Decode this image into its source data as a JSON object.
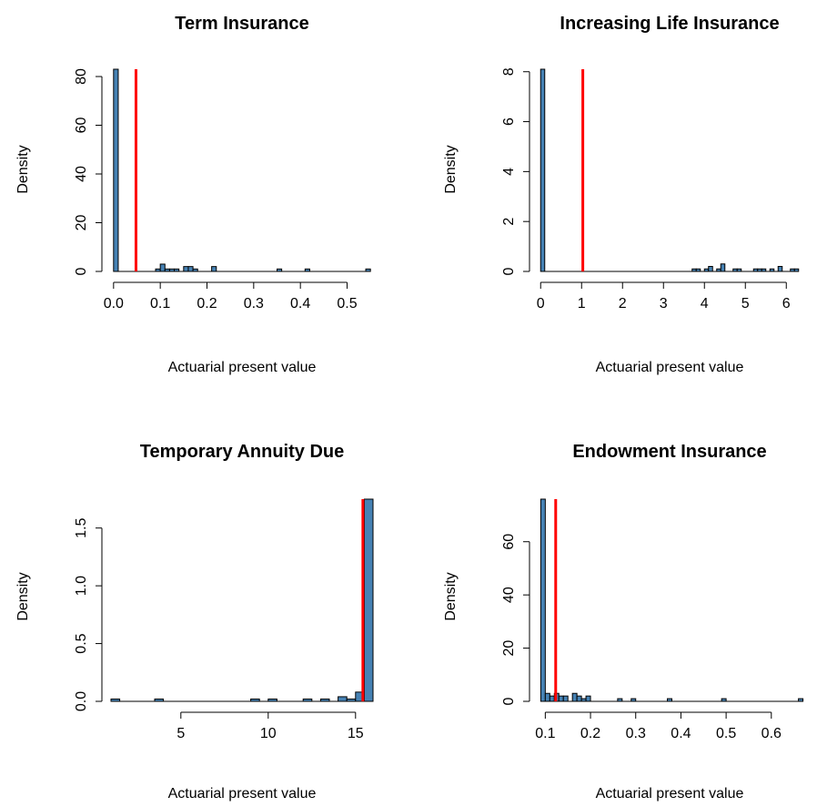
{
  "chart_data": [
    {
      "type": "bar",
      "title": "Term Insurance",
      "xlabel": "Actuarial present value",
      "ylabel": "Density",
      "xlim": [
        -0.0055,
        0.5555
      ],
      "ylim": [
        0,
        83
      ],
      "xticks": [
        0.0,
        0.1,
        0.2,
        0.3,
        0.4,
        0.5
      ],
      "xtick_labels": [
        "0.0",
        "0.1",
        "0.2",
        "0.3",
        "0.4",
        "0.5"
      ],
      "yticks": [
        0,
        20,
        40,
        60,
        80
      ],
      "ytick_labels": [
        "0",
        "20",
        "40",
        "60",
        "80"
      ],
      "bin_width": 0.01,
      "bins": [
        [
          0.0,
          83
        ],
        [
          0.09,
          1
        ],
        [
          0.1,
          3
        ],
        [
          0.11,
          1
        ],
        [
          0.12,
          1
        ],
        [
          0.13,
          1
        ],
        [
          0.15,
          2
        ],
        [
          0.16,
          2
        ],
        [
          0.17,
          1
        ],
        [
          0.21,
          2
        ],
        [
          0.35,
          1
        ],
        [
          0.41,
          1
        ],
        [
          0.54,
          1
        ]
      ],
      "vline": 0.048,
      "bar_color": "#4682b4",
      "line_color": "#ff0000"
    },
    {
      "type": "bar",
      "title": "Increasing Life Insurance",
      "xlabel": "Actuarial present value",
      "ylabel": "Density",
      "xlim": [
        -0.05,
        6.35
      ],
      "ylim": [
        0,
        8.1
      ],
      "xticks": [
        0,
        1,
        2,
        3,
        4,
        5,
        6
      ],
      "xtick_labels": [
        "0",
        "1",
        "2",
        "3",
        "4",
        "5",
        "6"
      ],
      "yticks": [
        0,
        2,
        4,
        6,
        8
      ],
      "ytick_labels": [
        "0",
        "2",
        "4",
        "6",
        "8"
      ],
      "bin_width": 0.1,
      "bins": [
        [
          0.0,
          8.1
        ],
        [
          3.7,
          0.1
        ],
        [
          3.8,
          0.1
        ],
        [
          4.0,
          0.1
        ],
        [
          4.1,
          0.2
        ],
        [
          4.3,
          0.1
        ],
        [
          4.4,
          0.3
        ],
        [
          4.7,
          0.1
        ],
        [
          4.8,
          0.1
        ],
        [
          5.2,
          0.1
        ],
        [
          5.3,
          0.1
        ],
        [
          5.4,
          0.1
        ],
        [
          5.6,
          0.1
        ],
        [
          5.8,
          0.2
        ],
        [
          6.1,
          0.1
        ],
        [
          6.2,
          0.1
        ]
      ],
      "vline": 1.03,
      "bar_color": "#4682b4",
      "line_color": "#ff0000"
    },
    {
      "type": "bar",
      "title": "Temporary Annuity Due",
      "xlabel": "Actuarial present value",
      "ylabel": "Density",
      "xlim": [
        1,
        16
      ],
      "ylim": [
        0,
        1.75
      ],
      "xticks": [
        5,
        10,
        15
      ],
      "xtick_labels": [
        "5",
        "10",
        "15"
      ],
      "yticks": [
        0.0,
        0.5,
        1.0,
        1.5
      ],
      "ytick_labels": [
        "0.0",
        "0.5",
        "1.0",
        "1.5"
      ],
      "bin_width": 0.5,
      "bins": [
        [
          1.0,
          0.02
        ],
        [
          3.5,
          0.02
        ],
        [
          9.0,
          0.02
        ],
        [
          10.0,
          0.02
        ],
        [
          12.0,
          0.02
        ],
        [
          13.0,
          0.02
        ],
        [
          14.0,
          0.04
        ],
        [
          14.5,
          0.02
        ],
        [
          15.0,
          0.08
        ],
        [
          15.5,
          1.75
        ]
      ],
      "vline": 15.42,
      "bar_color": "#4682b4",
      "line_color": "#ff0000"
    },
    {
      "type": "bar",
      "title": "Endowment Insurance",
      "xlabel": "Actuarial present value",
      "ylabel": "Density",
      "xlim": [
        0.0852,
        0.6648
      ],
      "ylim": [
        0,
        76
      ],
      "xticks": [
        0.1,
        0.2,
        0.3,
        0.4,
        0.5,
        0.6
      ],
      "xtick_labels": [
        "0.1",
        "0.2",
        "0.3",
        "0.4",
        "0.5",
        "0.6"
      ],
      "yticks": [
        0,
        20,
        40,
        60
      ],
      "ytick_labels": [
        "0",
        "20",
        "40",
        "60"
      ],
      "bin_width": 0.01,
      "bins": [
        [
          0.09,
          76
        ],
        [
          0.1,
          3
        ],
        [
          0.11,
          2
        ],
        [
          0.12,
          3
        ],
        [
          0.13,
          2
        ],
        [
          0.14,
          2
        ],
        [
          0.16,
          3
        ],
        [
          0.17,
          2
        ],
        [
          0.18,
          1
        ],
        [
          0.19,
          2
        ],
        [
          0.26,
          1
        ],
        [
          0.29,
          1
        ],
        [
          0.37,
          1
        ],
        [
          0.49,
          1
        ],
        [
          0.66,
          1
        ]
      ],
      "vline": 0.123,
      "bar_color": "#4682b4",
      "line_color": "#ff0000"
    }
  ]
}
